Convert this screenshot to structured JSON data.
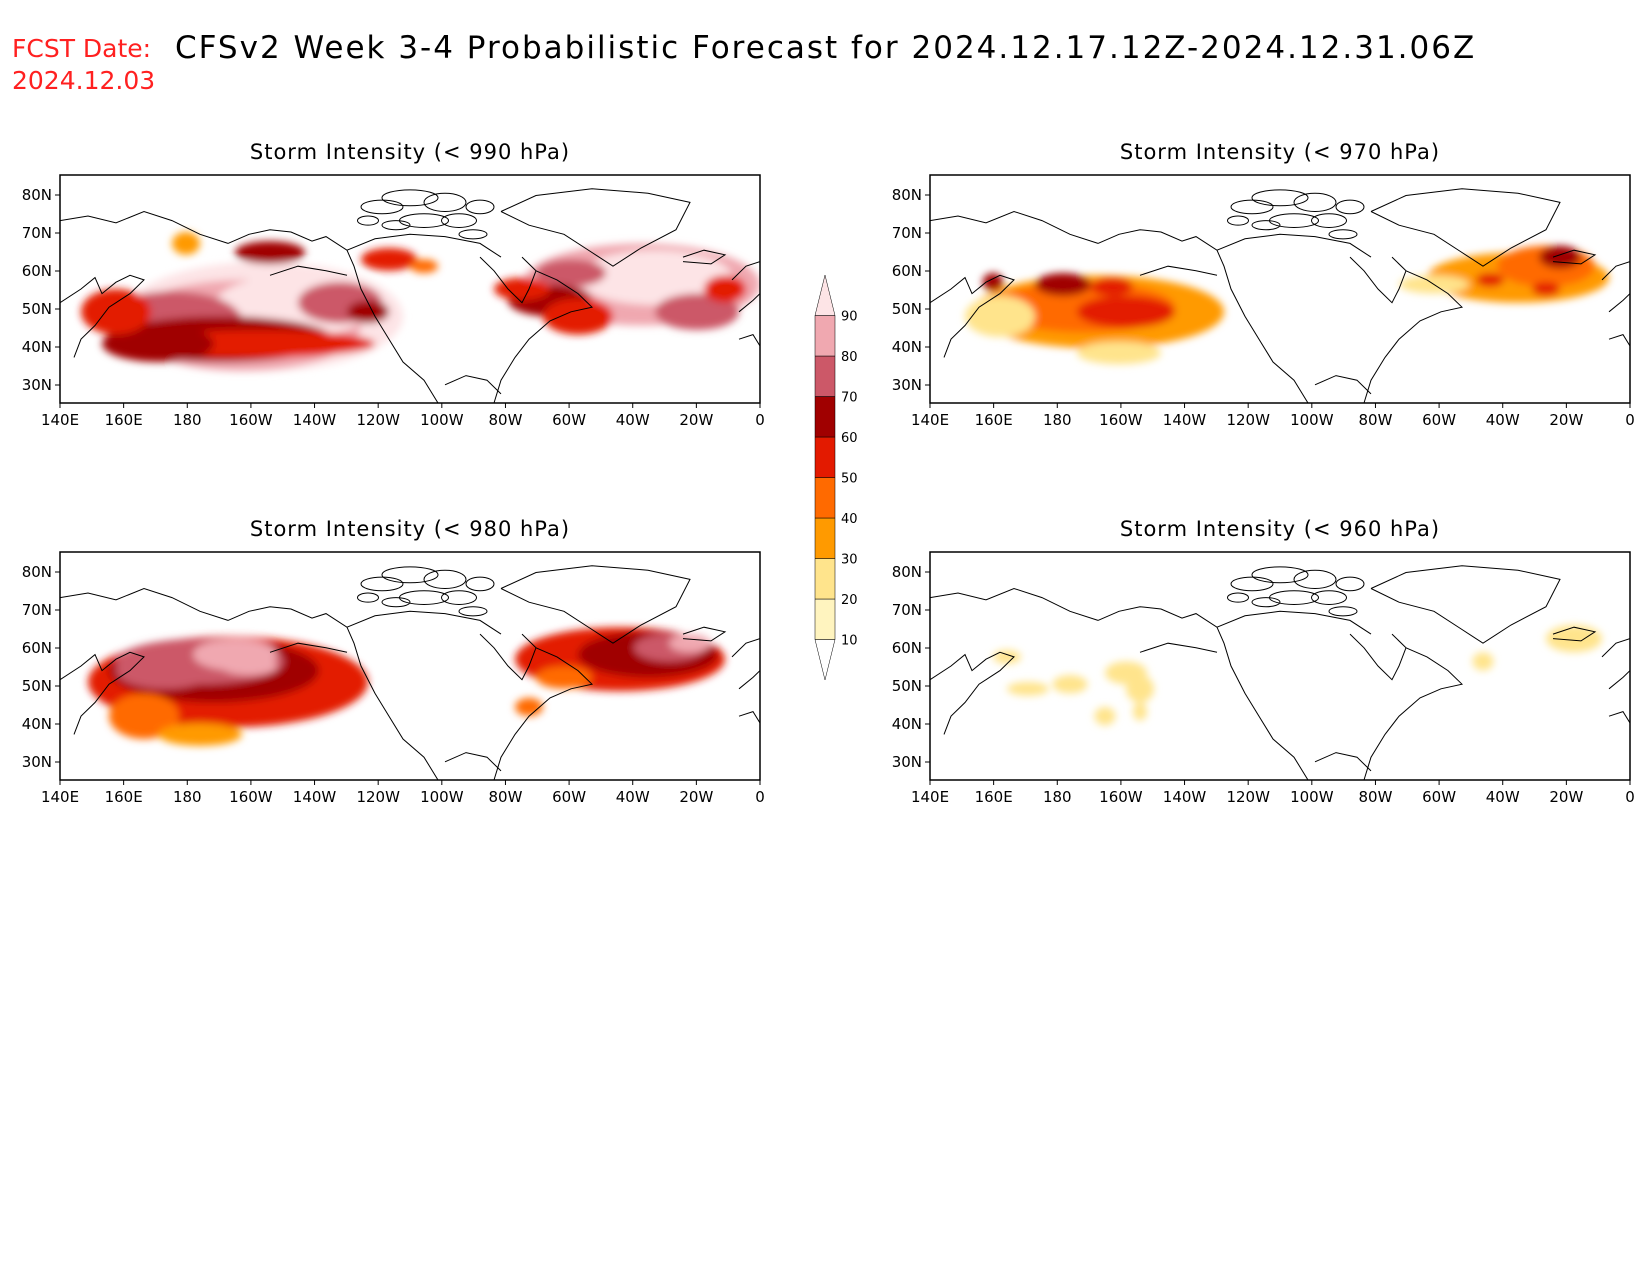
{
  "header": {
    "fcst_label": "FCST Date:",
    "fcst_date": "2024.12.03",
    "title": "CFSv2 Week 3-4 Probabilistic Forecast for 2024.12.17.12Z-2024.12.31.06Z"
  },
  "lon_ticks": [
    "140E",
    "160E",
    "180",
    "160W",
    "140W",
    "120W",
    "100W",
    "80W",
    "60W",
    "40W",
    "20W",
    "0"
  ],
  "lat_ticks": [
    "80N",
    "70N",
    "60N",
    "50N",
    "40N",
    "30N"
  ],
  "colorbar": {
    "levels": [
      "10",
      "20",
      "30",
      "40",
      "50",
      "60",
      "70",
      "80",
      "90"
    ],
    "colors": [
      "#ffffff",
      "#fff4bf",
      "#ffe48c",
      "#ff9a00",
      "#ff6a00",
      "#e31a00",
      "#a00000",
      "#cc5868",
      "#f0a8b0",
      "#fde4e6"
    ]
  },
  "panels": [
    {
      "id": "p990",
      "title": "Storm Intensity (< 990 hPa)",
      "blobs": [
        [
          0.29,
          0.62,
          0.2,
          0.24,
          9
        ],
        [
          0.26,
          0.66,
          0.17,
          0.2,
          8
        ],
        [
          0.33,
          0.58,
          0.11,
          0.14,
          9
        ],
        [
          0.16,
          0.64,
          0.1,
          0.13,
          7
        ],
        [
          0.23,
          0.72,
          0.16,
          0.1,
          6
        ],
        [
          0.28,
          0.74,
          0.17,
          0.06,
          5
        ],
        [
          0.14,
          0.74,
          0.08,
          0.08,
          6
        ],
        [
          0.08,
          0.6,
          0.05,
          0.1,
          5
        ],
        [
          0.4,
          0.56,
          0.06,
          0.09,
          7
        ],
        [
          0.44,
          0.6,
          0.03,
          0.05,
          6
        ],
        [
          0.47,
          0.37,
          0.04,
          0.05,
          5
        ],
        [
          0.52,
          0.4,
          0.02,
          0.03,
          4
        ],
        [
          0.3,
          0.34,
          0.05,
          0.05,
          6
        ],
        [
          0.18,
          0.3,
          0.02,
          0.05,
          3
        ],
        [
          0.83,
          0.48,
          0.17,
          0.18,
          8
        ],
        [
          0.85,
          0.45,
          0.11,
          0.12,
          9
        ],
        [
          0.73,
          0.43,
          0.05,
          0.06,
          7
        ],
        [
          0.7,
          0.55,
          0.06,
          0.07,
          6
        ],
        [
          0.74,
          0.62,
          0.05,
          0.08,
          5
        ],
        [
          0.66,
          0.5,
          0.04,
          0.05,
          5
        ],
        [
          0.91,
          0.6,
          0.06,
          0.08,
          7
        ],
        [
          0.95,
          0.5,
          0.03,
          0.06,
          5
        ]
      ]
    },
    {
      "id": "p970",
      "title": "Storm Intensity (< 970 hPa)",
      "blobs": [
        [
          0.24,
          0.6,
          0.18,
          0.16,
          3
        ],
        [
          0.22,
          0.58,
          0.13,
          0.11,
          4
        ],
        [
          0.28,
          0.6,
          0.07,
          0.07,
          5
        ],
        [
          0.19,
          0.48,
          0.04,
          0.05,
          6
        ],
        [
          0.26,
          0.49,
          0.03,
          0.04,
          5
        ],
        [
          0.1,
          0.62,
          0.05,
          0.09,
          2
        ],
        [
          0.09,
          0.47,
          0.015,
          0.04,
          6
        ],
        [
          0.27,
          0.78,
          0.06,
          0.05,
          2
        ],
        [
          0.84,
          0.45,
          0.13,
          0.11,
          3
        ],
        [
          0.88,
          0.4,
          0.07,
          0.09,
          4
        ],
        [
          0.9,
          0.36,
          0.03,
          0.05,
          6
        ],
        [
          0.72,
          0.48,
          0.05,
          0.04,
          2
        ],
        [
          0.8,
          0.46,
          0.02,
          0.03,
          5
        ],
        [
          0.88,
          0.5,
          0.02,
          0.03,
          5
        ]
      ]
    },
    {
      "id": "p980",
      "title": "Storm Intensity (< 980 hPa)",
      "blobs": [
        [
          0.24,
          0.57,
          0.2,
          0.2,
          5
        ],
        [
          0.22,
          0.52,
          0.15,
          0.14,
          6
        ],
        [
          0.2,
          0.48,
          0.12,
          0.1,
          7
        ],
        [
          0.15,
          0.52,
          0.07,
          0.08,
          7
        ],
        [
          0.25,
          0.45,
          0.06,
          0.07,
          8
        ],
        [
          0.27,
          0.5,
          0.04,
          0.04,
          8
        ],
        [
          0.12,
          0.72,
          0.05,
          0.1,
          4
        ],
        [
          0.2,
          0.8,
          0.06,
          0.05,
          3
        ],
        [
          0.8,
          0.47,
          0.15,
          0.14,
          5
        ],
        [
          0.84,
          0.45,
          0.1,
          0.1,
          6
        ],
        [
          0.87,
          0.42,
          0.05,
          0.06,
          7
        ],
        [
          0.9,
          0.4,
          0.03,
          0.04,
          8
        ],
        [
          0.72,
          0.55,
          0.04,
          0.05,
          4
        ],
        [
          0.67,
          0.68,
          0.02,
          0.04,
          4
        ]
      ]
    },
    {
      "id": "p960",
      "title": "Storm Intensity (< 960 hPa)",
      "blobs": [
        [
          0.2,
          0.58,
          0.025,
          0.04,
          2
        ],
        [
          0.28,
          0.53,
          0.03,
          0.05,
          2
        ],
        [
          0.3,
          0.6,
          0.02,
          0.06,
          2
        ],
        [
          0.14,
          0.6,
          0.03,
          0.03,
          2
        ],
        [
          0.11,
          0.46,
          0.02,
          0.03,
          2
        ],
        [
          0.92,
          0.38,
          0.04,
          0.06,
          2
        ],
        [
          0.79,
          0.48,
          0.015,
          0.04,
          2
        ],
        [
          0.25,
          0.72,
          0.015,
          0.04,
          2
        ],
        [
          0.3,
          0.7,
          0.01,
          0.04,
          2
        ]
      ]
    }
  ]
}
